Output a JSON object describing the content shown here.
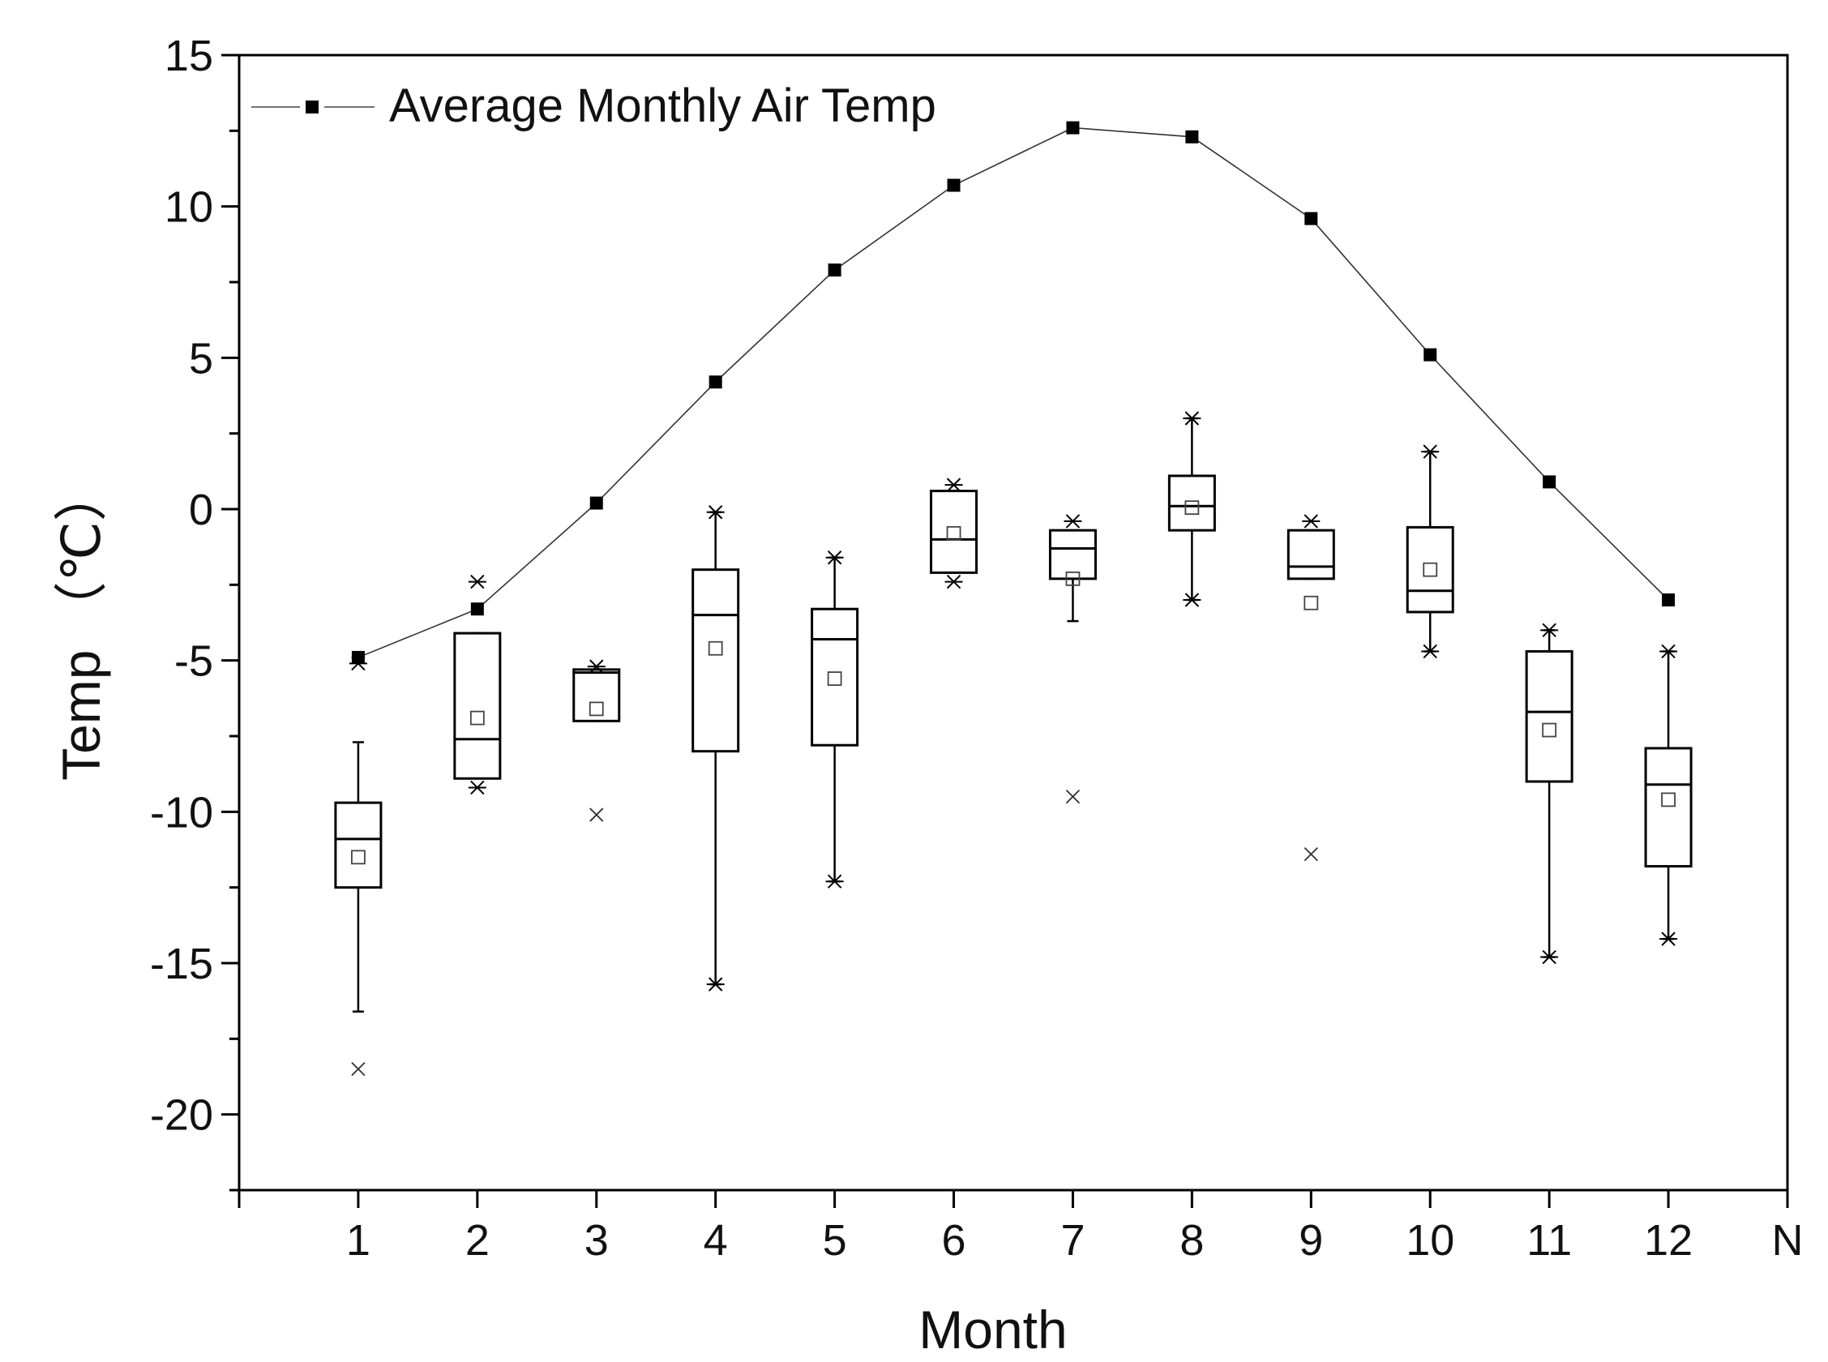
{
  "chart_data": {
    "type": "box",
    "title": "",
    "xlabel": "Month",
    "ylabel": "Temp （℃）",
    "ylim": [
      -22.5,
      15
    ],
    "xlim": [
      0,
      13
    ],
    "yticks": [
      15,
      10,
      5,
      0,
      -5,
      -10,
      -15,
      -20
    ],
    "ytick_labels": [
      "15",
      "10",
      "5",
      "0",
      "-5",
      "-10",
      "-15",
      "-20"
    ],
    "categories": [
      "1",
      "2",
      "3",
      "4",
      "5",
      "6",
      "7",
      "8",
      "9",
      "10",
      "11",
      "12"
    ],
    "extra_xtick_label": "N",
    "line_series": {
      "name": "Average Monthly Air Temp",
      "x": [
        1,
        2,
        3,
        4,
        5,
        6,
        7,
        8,
        9,
        10,
        11,
        12
      ],
      "values": [
        -4.9,
        -3.3,
        0.2,
        4.2,
        7.9,
        10.7,
        12.6,
        12.3,
        9.6,
        5.1,
        0.9,
        -3.0
      ]
    },
    "boxes": [
      {
        "month": 1,
        "q1": -12.5,
        "median": -10.9,
        "q3": -9.7,
        "mean": -11.5,
        "whisker_low": -16.6,
        "whisker_high": -7.7,
        "min_marker": null,
        "max_marker": -5.1,
        "outliers": [
          -18.5
        ]
      },
      {
        "month": 2,
        "q1": -8.9,
        "median": -7.6,
        "q3": -4.1,
        "mean": -6.9,
        "whisker_low": -8.9,
        "whisker_high": -4.1,
        "min_marker": -9.2,
        "max_marker": -2.4,
        "outliers": []
      },
      {
        "month": 3,
        "q1": -7.0,
        "median": -5.4,
        "q3": -5.3,
        "mean": -6.6,
        "whisker_low": -7.0,
        "whisker_high": -5.3,
        "min_marker": null,
        "max_marker": -5.2,
        "outliers": [
          -10.1
        ]
      },
      {
        "month": 4,
        "q1": -8.0,
        "median": -3.5,
        "q3": -2.0,
        "mean": -4.6,
        "whisker_low": -15.7,
        "whisker_high": -0.1,
        "min_marker": -15.7,
        "max_marker": -0.1,
        "outliers": []
      },
      {
        "month": 5,
        "q1": -7.8,
        "median": -4.3,
        "q3": -3.3,
        "mean": -5.6,
        "whisker_low": -12.3,
        "whisker_high": -1.6,
        "min_marker": -12.3,
        "max_marker": -1.6,
        "outliers": []
      },
      {
        "month": 6,
        "q1": -2.1,
        "median": -1.0,
        "q3": 0.6,
        "mean": -0.8,
        "whisker_low": -2.1,
        "whisker_high": 0.6,
        "min_marker": -2.4,
        "max_marker": 0.8,
        "outliers": []
      },
      {
        "month": 7,
        "q1": -2.3,
        "median": -1.3,
        "q3": -0.7,
        "mean": -2.3,
        "whisker_low": -3.7,
        "whisker_high": -0.7,
        "min_marker": null,
        "max_marker": -0.4,
        "outliers": [
          -9.5
        ]
      },
      {
        "month": 8,
        "q1": -0.7,
        "median": 0.1,
        "q3": 1.1,
        "mean": 0.05,
        "whisker_low": -3.0,
        "whisker_high": 3.0,
        "min_marker": -3.0,
        "max_marker": 3.0,
        "outliers": []
      },
      {
        "month": 9,
        "q1": -2.3,
        "median": -1.9,
        "q3": -0.7,
        "mean": -3.1,
        "whisker_low": -2.3,
        "whisker_high": -0.7,
        "min_marker": null,
        "max_marker": -0.4,
        "outliers": [
          -11.4
        ]
      },
      {
        "month": 10,
        "q1": -3.4,
        "median": -2.7,
        "q3": -0.6,
        "mean": -2.0,
        "whisker_low": -4.7,
        "whisker_high": 1.9,
        "min_marker": -4.7,
        "max_marker": 1.9,
        "outliers": []
      },
      {
        "month": 11,
        "q1": -9.0,
        "median": -6.7,
        "q3": -4.7,
        "mean": -7.3,
        "whisker_low": -14.8,
        "whisker_high": -4.0,
        "min_marker": -14.8,
        "max_marker": -4.0,
        "outliers": []
      },
      {
        "month": 12,
        "q1": -11.8,
        "median": -9.1,
        "q3": -7.9,
        "mean": -9.6,
        "whisker_low": -14.2,
        "whisker_high": -4.7,
        "min_marker": -14.2,
        "max_marker": -4.7,
        "outliers": []
      }
    ],
    "legend": {
      "label": "Average Monthly Air Temp",
      "position": "top-left"
    },
    "grid": false
  }
}
